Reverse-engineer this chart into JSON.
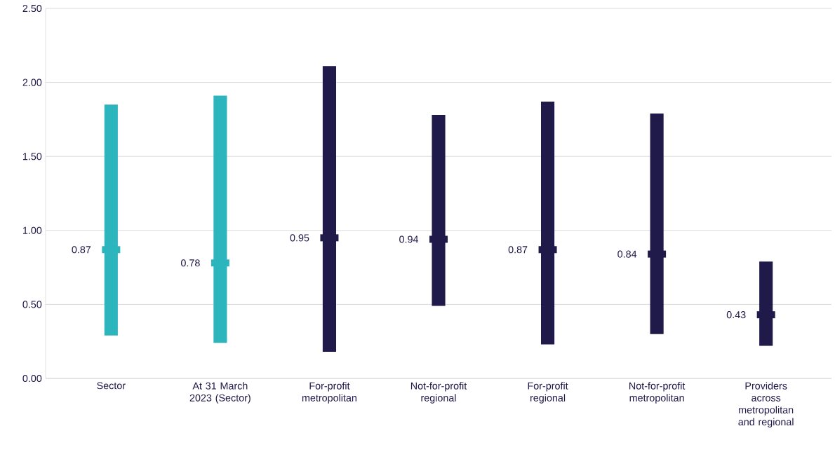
{
  "chart_data": {
    "type": "bar",
    "categories": [
      "Sector",
      "At 31 March 2023 (Sector)",
      "For-profit metropolitan",
      "Not-for-profit regional",
      "For-profit regional",
      "Not-for-profit metropolitan",
      "Providers across metropolitan and regional"
    ],
    "series": [
      {
        "colors": [
          "#2cb5bd",
          "#2cb5bd",
          "#1f1a4a",
          "#1f1a4a",
          "#1f1a4a",
          "#1f1a4a",
          "#1f1a4a"
        ],
        "base": [
          0.29,
          0.24,
          0.18,
          0.49,
          0.23,
          0.3,
          0.22
        ],
        "values": [
          1.56,
          1.67,
          1.93,
          1.29,
          1.64,
          1.49,
          0.57
        ]
      },
      {
        "type": "scatter",
        "colors": [
          "#2cb5bd",
          "#2cb5bd",
          "#1f1a4a",
          "#1f1a4a",
          "#1f1a4a",
          "#1f1a4a",
          "#1f1a4a"
        ],
        "values": [
          0.87,
          0.78,
          0.95,
          0.94,
          0.87,
          0.84,
          0.43
        ],
        "value_labels": [
          "0.87",
          "0.78",
          "0.95",
          "0.94",
          "0.87",
          "0.84",
          "0.43"
        ]
      }
    ],
    "ylim": [
      0,
      2.5
    ],
    "yticks": [
      {
        "value": 0,
        "label": "0.00"
      },
      {
        "value": 0.5,
        "label": "0.50"
      },
      {
        "value": 1,
        "label": "1.00"
      },
      {
        "value": 1.5,
        "label": "1.50"
      },
      {
        "value": 2,
        "label": "2.00"
      },
      {
        "value": 2.5,
        "label": "2.50"
      }
    ],
    "grid": "y"
  }
}
